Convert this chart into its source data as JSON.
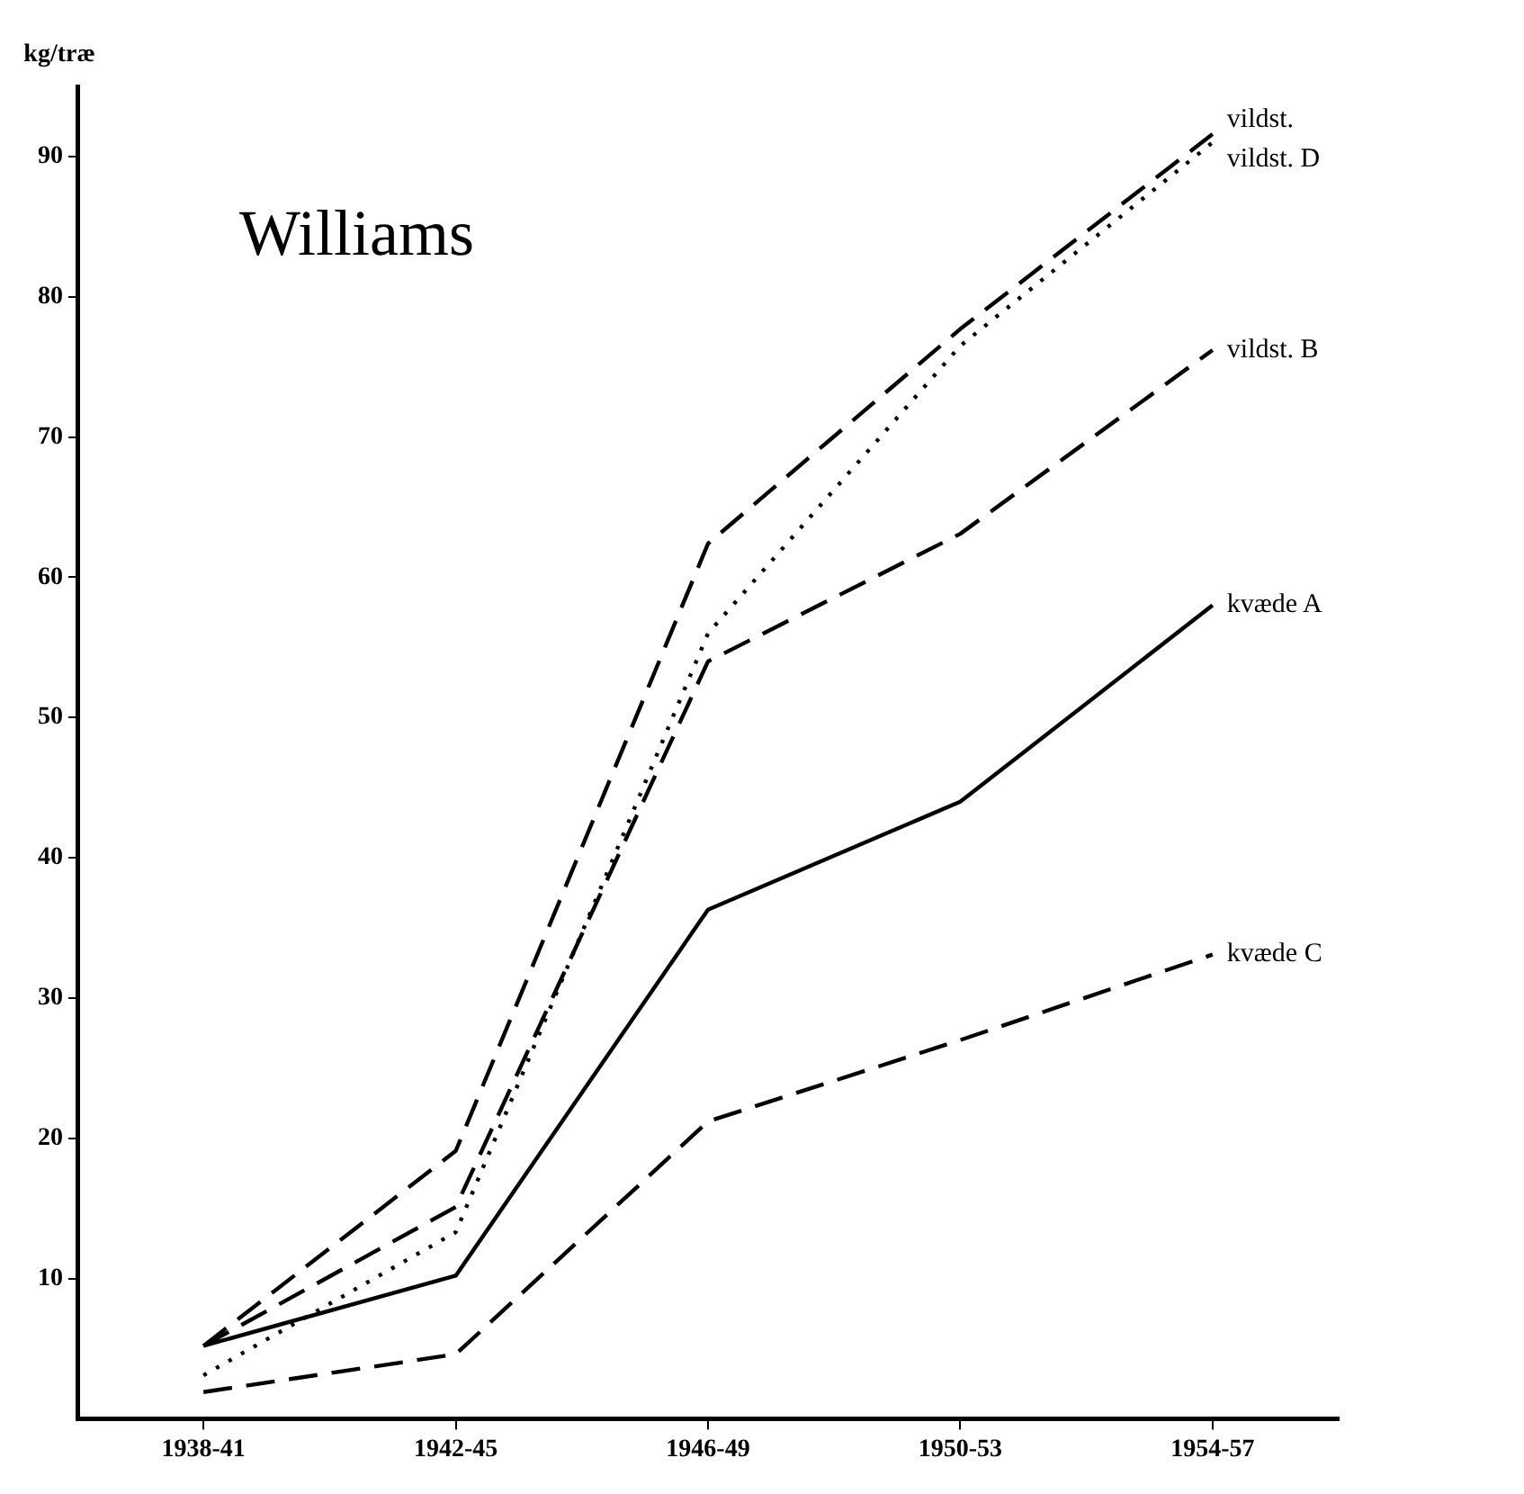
{
  "chart_data": {
    "type": "line",
    "title": "Williams",
    "ylabel": "kg/træ",
    "categories": [
      "1938-41",
      "1942-45",
      "1946-49",
      "1950-53",
      "1954-57"
    ],
    "series": [
      {
        "name": "vildst.",
        "color": "#000000",
        "line_style": "dashed",
        "values": [
          5.2,
          19.1,
          62.4,
          77.7,
          91.6
        ]
      },
      {
        "name": "vildst. D",
        "color": "#000000",
        "line_style": "dotted",
        "values": [
          3.1,
          13.3,
          56,
          76.5,
          91
        ]
      },
      {
        "name": "vildst. B",
        "color": "#000000",
        "line_style": "dashed",
        "values": [
          5.2,
          15.1,
          54,
          63.1,
          76.2
        ]
      },
      {
        "name": "kvæde A",
        "color": "#000000",
        "line_style": "solid",
        "values": [
          5.2,
          10.2,
          36.3,
          44,
          58
        ]
      },
      {
        "name": "kvæde C",
        "color": "#000000",
        "line_style": "dashed",
        "values": [
          1.9,
          4.6,
          21.2,
          27,
          33.1
        ]
      }
    ],
    "ylim": [
      0,
      95
    ],
    "yticks": [
      10,
      20,
      30,
      40,
      50,
      60,
      70,
      80,
      90
    ],
    "grid": false,
    "legend": false
  }
}
